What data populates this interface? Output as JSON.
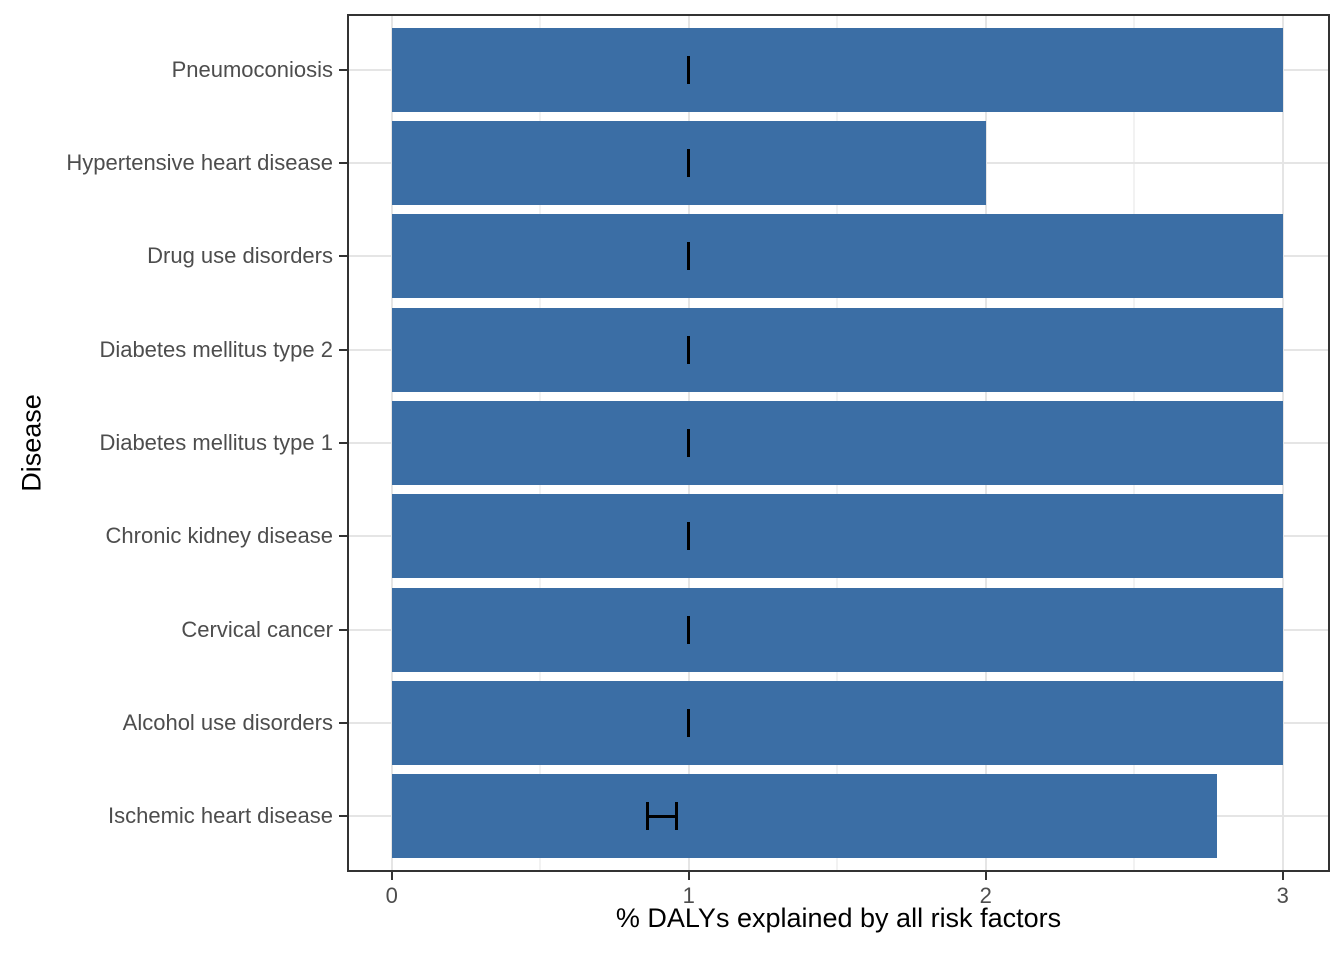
{
  "chart_data": {
    "type": "bar",
    "orientation": "horizontal",
    "title": "",
    "xlabel": "% DALYs explained by all risk factors",
    "ylabel": "Disease",
    "xlim": [
      0,
      3
    ],
    "x_major_ticks": [
      0,
      1,
      2,
      3
    ],
    "x_minor_ticks": [
      0.5,
      1.5,
      2.5
    ],
    "grid": true,
    "legend": false,
    "categories": [
      "Pneumoconiosis",
      "Hypertensive heart disease",
      "Drug use disorders",
      "Diabetes mellitus type 2",
      "Diabetes mellitus type 1",
      "Chronic kidney disease",
      "Cervical cancer",
      "Alcohol use disorders",
      "Ischemic heart disease"
    ],
    "values": [
      3.0,
      2.0,
      3.0,
      3.0,
      3.0,
      3.0,
      3.0,
      3.0,
      2.78
    ],
    "error_bars": [
      {
        "low": 1.0,
        "high": 1.0
      },
      {
        "low": 1.0,
        "high": 1.0
      },
      {
        "low": 1.0,
        "high": 1.0
      },
      {
        "low": 1.0,
        "high": 1.0
      },
      {
        "low": 1.0,
        "high": 1.0
      },
      {
        "low": 1.0,
        "high": 1.0
      },
      {
        "low": 1.0,
        "high": 1.0
      },
      {
        "low": 1.0,
        "high": 1.0
      },
      {
        "low": 0.86,
        "high": 0.96
      }
    ]
  },
  "colors": {
    "bar": "#3B6EA5",
    "error_bar": "#000000",
    "grid_major": "#E5E5E5",
    "grid_minor": "#F2F2F2",
    "panel_border": "#333333",
    "axis_text": "#4D4D4D",
    "axis_title": "#000000"
  }
}
